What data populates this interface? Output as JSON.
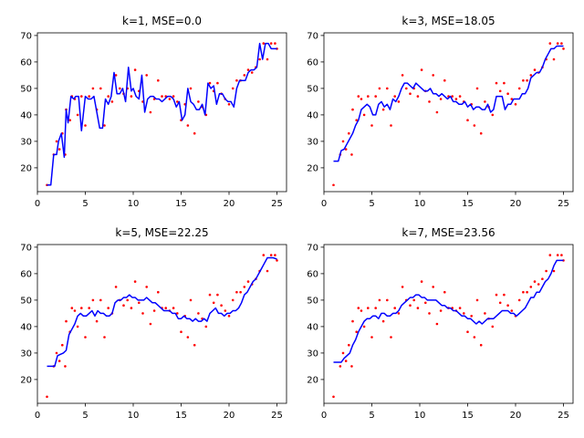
{
  "chart_data": [
    {
      "type": "scatter",
      "title": "k=1, MSE=0.0",
      "xlim": [
        0,
        26
      ],
      "ylim": [
        11,
        71
      ],
      "xticks": [
        0,
        5,
        10,
        15,
        20,
        25
      ],
      "yticks": [
        20,
        30,
        40,
        50,
        60,
        70
      ],
      "grid": false,
      "scatter_color": "#ff0000",
      "line_color": "#0000ff",
      "fit": {
        "x": [
          1.0,
          1.4,
          1.7,
          2.0,
          2.2,
          2.5,
          2.8,
          3.0,
          3.2,
          3.5,
          3.8,
          4.0,
          4.3,
          4.6,
          5.0,
          5.3,
          5.6,
          5.9,
          6.2,
          6.5,
          6.8,
          7.1,
          7.4,
          7.7,
          8.0,
          8.3,
          8.6,
          8.9,
          9.2,
          9.5,
          9.8,
          10.0,
          10.3,
          10.6,
          10.9,
          11.2,
          11.5,
          11.8,
          12.1,
          12.4,
          12.7,
          13.0,
          13.3,
          13.6,
          13.9,
          14.2,
          14.5,
          14.8,
          15.1,
          15.4,
          15.7,
          16.0,
          16.3,
          16.6,
          16.9,
          17.2,
          17.5,
          17.8,
          18.1,
          18.4,
          18.7,
          19.0,
          19.3,
          19.6,
          19.9,
          20.2,
          20.5,
          20.8,
          21.1,
          21.4,
          21.7,
          22.0,
          22.3,
          22.6,
          22.9,
          23.2,
          23.5,
          23.8,
          24.1,
          24.4,
          24.7,
          25.0
        ],
        "y": [
          13.5,
          13.5,
          25,
          25,
          30,
          33,
          24,
          42,
          37,
          47,
          46,
          47,
          47,
          34,
          47,
          46,
          46,
          47,
          41,
          35,
          35,
          46,
          44,
          47,
          56,
          48,
          48,
          50,
          45,
          58,
          49,
          50,
          47,
          46,
          55,
          41,
          46,
          47,
          47,
          46,
          46,
          45,
          46,
          47,
          47,
          46,
          43,
          45,
          38,
          40,
          50,
          45,
          44,
          42,
          42,
          44,
          40,
          52,
          50,
          51,
          44,
          48,
          48,
          46,
          45,
          45,
          43,
          50,
          53,
          53,
          53,
          56,
          57,
          57,
          58,
          67,
          61,
          67,
          67,
          65,
          65,
          65
        ]
      },
      "points": {
        "x": [
          1.0,
          1.7,
          2.0,
          2.3,
          2.6,
          2.9,
          3.0,
          3.4,
          3.6,
          3.9,
          4.2,
          4.6,
          5.0,
          5.4,
          5.8,
          6.2,
          6.6,
          7.0,
          7.4,
          7.8,
          8.2,
          8.6,
          9.0,
          9.4,
          9.8,
          10.2,
          10.6,
          11.0,
          11.4,
          11.8,
          12.2,
          12.6,
          13.0,
          13.4,
          13.8,
          14.2,
          14.6,
          15.0,
          15.4,
          15.7,
          16.0,
          16.4,
          16.8,
          17.2,
          17.6,
          18.0,
          18.4,
          18.8,
          19.2,
          19.6,
          20.0,
          20.4,
          20.8,
          21.2,
          21.6,
          22.0,
          22.4,
          22.8,
          23.2,
          23.6,
          24.0,
          24.4,
          24.8,
          25.0
        ],
        "y": [
          13.5,
          25,
          30,
          27,
          33,
          25,
          42,
          38,
          47,
          46,
          40,
          47,
          36,
          47,
          50,
          42,
          50,
          36,
          47,
          45,
          55,
          50,
          48,
          50,
          47,
          57,
          49,
          45,
          55,
          41,
          46,
          53,
          47,
          47,
          46,
          47,
          45,
          38,
          44,
          36,
          50,
          33,
          45,
          43,
          40,
          52,
          49,
          52,
          48,
          46,
          44,
          50,
          53,
          53,
          55,
          57,
          56,
          58,
          61,
          67,
          61,
          67,
          67,
          65
        ]
      }
    },
    {
      "type": "scatter",
      "title": "k=3, MSE=18.05",
      "xlim": [
        0,
        26
      ],
      "ylim": [
        11,
        71
      ],
      "xticks": [
        0,
        5,
        10,
        15,
        20,
        25
      ],
      "yticks": [
        20,
        30,
        40,
        50,
        60,
        70
      ],
      "grid": false,
      "scatter_color": "#ff0000",
      "line_color": "#0000ff",
      "fit": {
        "x": [
          1.0,
          1.5,
          1.8,
          2.1,
          2.4,
          2.7,
          3.0,
          3.3,
          3.6,
          3.9,
          4.2,
          4.5,
          4.8,
          5.1,
          5.4,
          5.7,
          6.0,
          6.3,
          6.6,
          6.9,
          7.2,
          7.5,
          7.8,
          8.1,
          8.4,
          8.7,
          9.0,
          9.3,
          9.6,
          9.9,
          10.2,
          10.5,
          10.8,
          11.1,
          11.4,
          11.7,
          12.0,
          12.3,
          12.6,
          12.9,
          13.2,
          13.5,
          13.8,
          14.1,
          14.4,
          14.7,
          15.0,
          15.3,
          15.6,
          15.9,
          16.2,
          16.5,
          16.8,
          17.1,
          17.4,
          17.7,
          18.0,
          18.3,
          18.6,
          18.9,
          19.2,
          19.5,
          19.8,
          20.1,
          20.4,
          20.7,
          21.0,
          21.3,
          21.6,
          21.9,
          22.2,
          22.5,
          22.8,
          23.1,
          23.4,
          23.7,
          24.0,
          24.3,
          24.6,
          25.0
        ],
        "y": [
          22.5,
          22.5,
          26.5,
          27,
          29,
          31,
          33,
          36,
          38,
          42,
          43,
          44,
          43,
          40,
          40,
          44,
          45,
          43,
          44,
          42,
          46,
          45,
          47,
          50,
          52,
          52,
          51,
          50,
          52,
          51,
          50,
          49,
          49,
          50,
          48,
          48,
          47,
          48,
          47,
          46,
          47,
          45,
          45,
          44,
          44,
          45,
          43,
          44,
          42,
          43,
          43,
          42,
          42,
          44,
          41,
          42,
          47,
          47,
          47,
          42,
          44,
          44,
          46,
          46,
          46,
          48,
          48,
          50,
          54,
          55,
          56,
          56,
          58,
          61,
          63,
          65,
          65,
          66,
          66,
          66
        ]
      },
      "points": {
        "x": [
          1.0,
          1.7,
          2.0,
          2.3,
          2.6,
          2.9,
          3.0,
          3.4,
          3.6,
          3.9,
          4.2,
          4.6,
          5.0,
          5.4,
          5.8,
          6.2,
          6.6,
          7.0,
          7.4,
          7.8,
          8.2,
          8.6,
          9.0,
          9.4,
          9.8,
          10.2,
          10.6,
          11.0,
          11.4,
          11.8,
          12.2,
          12.6,
          13.0,
          13.4,
          13.8,
          14.2,
          14.6,
          15.0,
          15.4,
          15.7,
          16.0,
          16.4,
          16.8,
          17.2,
          17.6,
          18.0,
          18.4,
          18.8,
          19.2,
          19.6,
          20.0,
          20.4,
          20.8,
          21.2,
          21.6,
          22.0,
          22.4,
          22.8,
          23.2,
          23.6,
          24.0,
          24.4,
          24.8,
          25.0
        ],
        "y": [
          13.5,
          25,
          30,
          27,
          33,
          25,
          42,
          38,
          47,
          46,
          40,
          47,
          36,
          47,
          50,
          42,
          50,
          36,
          47,
          45,
          55,
          50,
          48,
          50,
          47,
          57,
          49,
          45,
          55,
          41,
          46,
          53,
          47,
          47,
          46,
          47,
          45,
          38,
          44,
          36,
          50,
          33,
          45,
          43,
          40,
          52,
          49,
          52,
          48,
          46,
          44,
          50,
          53,
          53,
          55,
          57,
          56,
          58,
          61,
          67,
          61,
          67,
          67,
          65
        ]
      }
    },
    {
      "type": "scatter",
      "title": "k=5, MSE=22.25",
      "xlim": [
        0,
        26
      ],
      "ylim": [
        11,
        71
      ],
      "xticks": [
        0,
        5,
        10,
        15,
        20,
        25
      ],
      "yticks": [
        20,
        30,
        40,
        50,
        60,
        70
      ],
      "grid": false,
      "scatter_color": "#ff0000",
      "line_color": "#0000ff",
      "fit": {
        "x": [
          1.0,
          1.5,
          1.8,
          2.1,
          2.4,
          2.7,
          3.0,
          3.3,
          3.6,
          3.9,
          4.2,
          4.5,
          4.8,
          5.1,
          5.4,
          5.7,
          6.0,
          6.3,
          6.6,
          6.9,
          7.2,
          7.5,
          7.8,
          8.1,
          8.4,
          8.7,
          9.0,
          9.3,
          9.6,
          9.9,
          10.2,
          10.5,
          10.8,
          11.1,
          11.4,
          11.7,
          12.0,
          12.3,
          12.6,
          12.9,
          13.2,
          13.5,
          13.8,
          14.1,
          14.4,
          14.7,
          15.0,
          15.3,
          15.6,
          15.9,
          16.2,
          16.5,
          16.8,
          17.1,
          17.4,
          17.7,
          18.0,
          18.3,
          18.6,
          18.9,
          19.2,
          19.5,
          19.8,
          20.1,
          20.4,
          20.7,
          21.0,
          21.3,
          21.6,
          21.9,
          22.2,
          22.5,
          22.8,
          23.1,
          23.4,
          23.7,
          24.0,
          24.3,
          24.6,
          25.0
        ],
        "y": [
          25,
          25,
          25,
          29,
          29.5,
          30,
          31,
          37,
          39,
          41,
          44,
          45,
          44,
          44,
          45,
          46,
          44,
          46,
          45,
          45,
          44,
          44,
          45,
          49,
          50,
          50,
          51,
          51,
          52,
          51,
          51,
          50,
          50,
          50,
          51,
          50,
          49,
          49,
          48,
          47,
          46,
          46,
          46,
          45,
          45,
          43,
          43,
          44,
          43,
          43,
          42,
          43,
          42,
          42,
          43,
          42,
          45,
          46,
          47,
          45,
          45,
          44,
          45,
          45,
          46,
          46,
          47,
          49,
          52,
          53,
          55,
          57,
          58,
          60,
          62,
          64,
          66,
          66,
          66,
          65.5
        ]
      },
      "points": {
        "x": [
          1.0,
          1.7,
          2.0,
          2.3,
          2.6,
          2.9,
          3.0,
          3.4,
          3.6,
          3.9,
          4.2,
          4.6,
          5.0,
          5.4,
          5.8,
          6.2,
          6.6,
          7.0,
          7.4,
          7.8,
          8.2,
          8.6,
          9.0,
          9.4,
          9.8,
          10.2,
          10.6,
          11.0,
          11.4,
          11.8,
          12.2,
          12.6,
          13.0,
          13.4,
          13.8,
          14.2,
          14.6,
          15.0,
          15.4,
          15.7,
          16.0,
          16.4,
          16.8,
          17.2,
          17.6,
          18.0,
          18.4,
          18.8,
          19.2,
          19.6,
          20.0,
          20.4,
          20.8,
          21.2,
          21.6,
          22.0,
          22.4,
          22.8,
          23.2,
          23.6,
          24.0,
          24.4,
          24.8,
          25.0
        ],
        "y": [
          13.5,
          25,
          30,
          27,
          33,
          25,
          42,
          38,
          47,
          46,
          40,
          47,
          36,
          47,
          50,
          42,
          50,
          36,
          47,
          45,
          55,
          50,
          48,
          50,
          47,
          57,
          49,
          45,
          55,
          41,
          46,
          53,
          47,
          47,
          46,
          47,
          45,
          38,
          44,
          36,
          50,
          33,
          45,
          43,
          40,
          52,
          49,
          52,
          48,
          46,
          44,
          50,
          53,
          53,
          55,
          57,
          56,
          58,
          61,
          67,
          61,
          67,
          67,
          65
        ]
      }
    },
    {
      "type": "scatter",
      "title": "k=7, MSE=23.56",
      "xlim": [
        0,
        26
      ],
      "ylim": [
        11,
        71
      ],
      "xticks": [
        0,
        5,
        10,
        15,
        20,
        25
      ],
      "yticks": [
        20,
        30,
        40,
        50,
        60,
        70
      ],
      "grid": false,
      "scatter_color": "#ff0000",
      "line_color": "#0000ff",
      "fit": {
        "x": [
          1.0,
          1.5,
          1.8,
          2.1,
          2.4,
          2.7,
          3.0,
          3.3,
          3.6,
          3.9,
          4.2,
          4.5,
          4.8,
          5.1,
          5.4,
          5.7,
          6.0,
          6.3,
          6.6,
          6.9,
          7.2,
          7.5,
          7.8,
          8.1,
          8.4,
          8.7,
          9.0,
          9.3,
          9.6,
          9.9,
          10.2,
          10.5,
          10.8,
          11.1,
          11.4,
          11.7,
          12.0,
          12.3,
          12.6,
          12.9,
          13.2,
          13.5,
          13.8,
          14.1,
          14.4,
          14.7,
          15.0,
          15.3,
          15.6,
          15.9,
          16.2,
          16.5,
          16.8,
          17.1,
          17.4,
          17.7,
          18.0,
          18.3,
          18.6,
          18.9,
          19.2,
          19.5,
          19.8,
          20.1,
          20.4,
          20.7,
          21.0,
          21.3,
          21.6,
          21.9,
          22.2,
          22.5,
          22.8,
          23.1,
          23.4,
          23.7,
          24.0,
          24.3,
          24.6,
          25.0
        ],
        "y": [
          26.5,
          26.5,
          26.5,
          28,
          29,
          30,
          33,
          35,
          38,
          40,
          42,
          43,
          43,
          44,
          44,
          43,
          45,
          45,
          44,
          44,
          45,
          45,
          46,
          48,
          49,
          50,
          51,
          51,
          52,
          52,
          51,
          51,
          50,
          50,
          50,
          50,
          49,
          48,
          48,
          47,
          47,
          46,
          46,
          45,
          44,
          44,
          43,
          43,
          42,
          41,
          42,
          41,
          42,
          43,
          43,
          43,
          44,
          45,
          46,
          46,
          46,
          45,
          45,
          44,
          45,
          46,
          47,
          49,
          51,
          51,
          53,
          53,
          55,
          57,
          58,
          60,
          63,
          65,
          65,
          65
        ]
      },
      "points": {
        "x": [
          1.0,
          1.7,
          2.0,
          2.3,
          2.6,
          2.9,
          3.0,
          3.4,
          3.6,
          3.9,
          4.2,
          4.6,
          5.0,
          5.4,
          5.8,
          6.2,
          6.6,
          7.0,
          7.4,
          7.8,
          8.2,
          8.6,
          9.0,
          9.4,
          9.8,
          10.2,
          10.6,
          11.0,
          11.4,
          11.8,
          12.2,
          12.6,
          13.0,
          13.4,
          13.8,
          14.2,
          14.6,
          15.0,
          15.4,
          15.7,
          16.0,
          16.4,
          16.8,
          17.2,
          17.6,
          18.0,
          18.4,
          18.8,
          19.2,
          19.6,
          20.0,
          20.4,
          20.8,
          21.2,
          21.6,
          22.0,
          22.4,
          22.8,
          23.2,
          23.6,
          24.0,
          24.4,
          24.8,
          25.0
        ],
        "y": [
          13.5,
          25,
          30,
          27,
          33,
          25,
          42,
          38,
          47,
          46,
          40,
          47,
          36,
          47,
          50,
          42,
          50,
          36,
          47,
          45,
          55,
          50,
          48,
          50,
          47,
          57,
          49,
          45,
          55,
          41,
          46,
          53,
          47,
          47,
          46,
          47,
          45,
          38,
          44,
          36,
          50,
          33,
          45,
          43,
          40,
          52,
          49,
          52,
          48,
          46,
          44,
          50,
          53,
          53,
          55,
          57,
          56,
          58,
          61,
          67,
          61,
          67,
          67,
          65
        ]
      }
    }
  ]
}
